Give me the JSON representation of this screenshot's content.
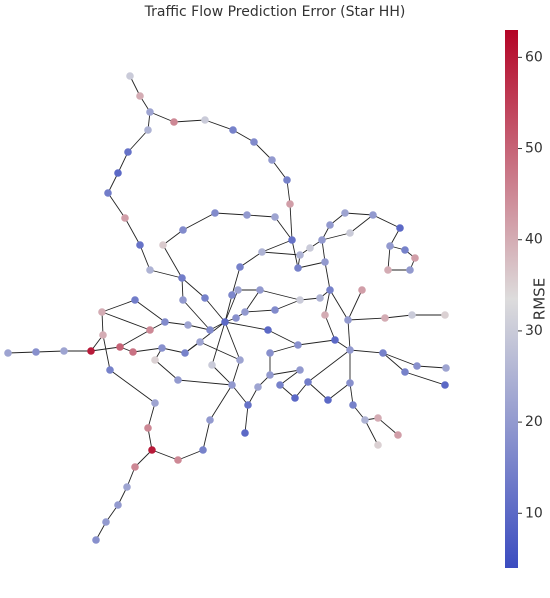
{
  "chart_data": {
    "type": "network",
    "title": "Traffic Flow Prediction Error (Star HH)",
    "colorbar_label": "RMSE",
    "vlim": [
      4,
      63
    ],
    "ticks": [
      10,
      20,
      30,
      40,
      50,
      60
    ],
    "colors": [
      "#3b4cc0",
      "#dddcdc",
      "#b40426"
    ],
    "values": [
      30,
      40,
      22,
      25,
      45,
      30,
      15,
      17,
      20,
      15,
      42,
      12,
      10,
      14,
      42,
      12,
      36,
      17,
      17,
      20,
      22,
      12,
      25,
      15,
      16,
      25,
      14,
      15,
      10,
      18,
      20,
      17,
      22,
      17,
      14,
      40,
      45,
      50,
      40,
      60,
      22,
      18,
      22,
      48,
      18,
      15,
      15,
      35,
      20,
      22,
      45,
      60,
      45,
      22,
      20,
      20,
      18,
      45,
      15,
      20,
      20,
      22,
      30,
      10,
      12,
      22,
      20,
      18,
      18,
      17,
      30,
      25,
      15,
      40,
      10,
      20,
      20,
      42,
      40,
      30,
      35,
      15,
      18,
      22,
      10,
      15,
      20,
      15,
      10,
      14,
      10,
      18,
      15,
      25,
      40,
      42,
      35,
      10,
      25,
      15,
      30,
      20,
      20,
      22,
      20,
      10,
      20,
      15,
      42,
      20,
      40,
      30,
      20,
      20,
      22,
      22,
      20
    ]
  }
}
